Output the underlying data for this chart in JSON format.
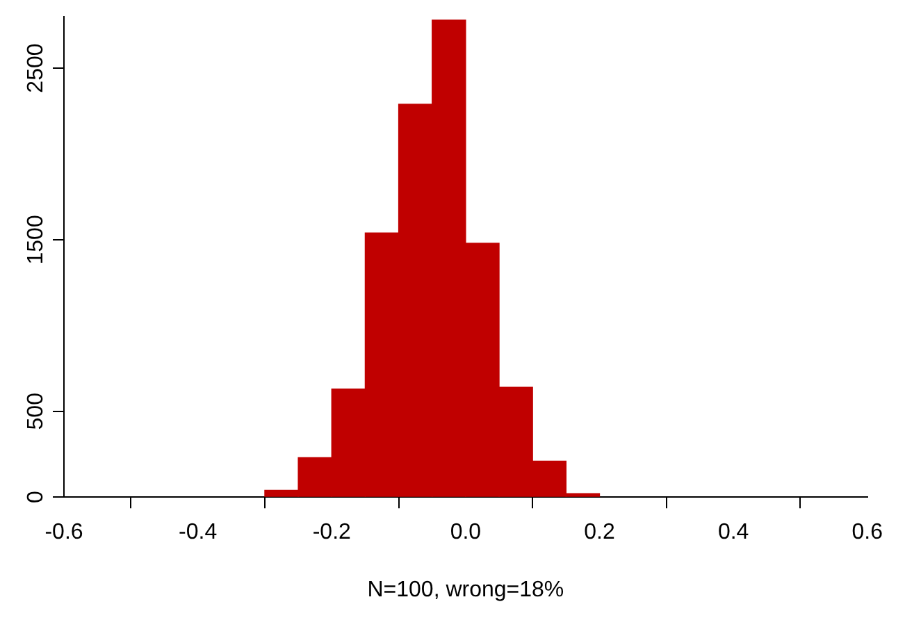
{
  "chart_data": {
    "type": "histogram",
    "xlabel": "N=100, wrong=18%",
    "bins": [
      -0.3,
      -0.25,
      -0.2,
      -0.15,
      -0.1,
      -0.05,
      0,
      0.05,
      0.1,
      0.15,
      0.2
    ],
    "values": [
      40,
      230,
      630,
      1540,
      2290,
      2780,
      1480,
      640,
      210,
      20
    ],
    "color": "#c00000",
    "xlim": [
      -0.6,
      0.6
    ],
    "xticks": [
      {
        "value": -0.6,
        "label": "-0.6"
      },
      {
        "value": -0.4,
        "label": "-0.4"
      },
      {
        "value": -0.2,
        "label": "-0.2"
      },
      {
        "value": 0,
        "label": "0.0"
      },
      {
        "value": 0.2,
        "label": "0.2"
      },
      {
        "value": 0.4,
        "label": "0.4"
      },
      {
        "value": 0.6,
        "label": "0.6"
      }
    ],
    "ylim": [
      0,
      2800
    ],
    "yticks": [
      0,
      500,
      1500,
      2500
    ],
    "grid": false,
    "legend": false
  }
}
